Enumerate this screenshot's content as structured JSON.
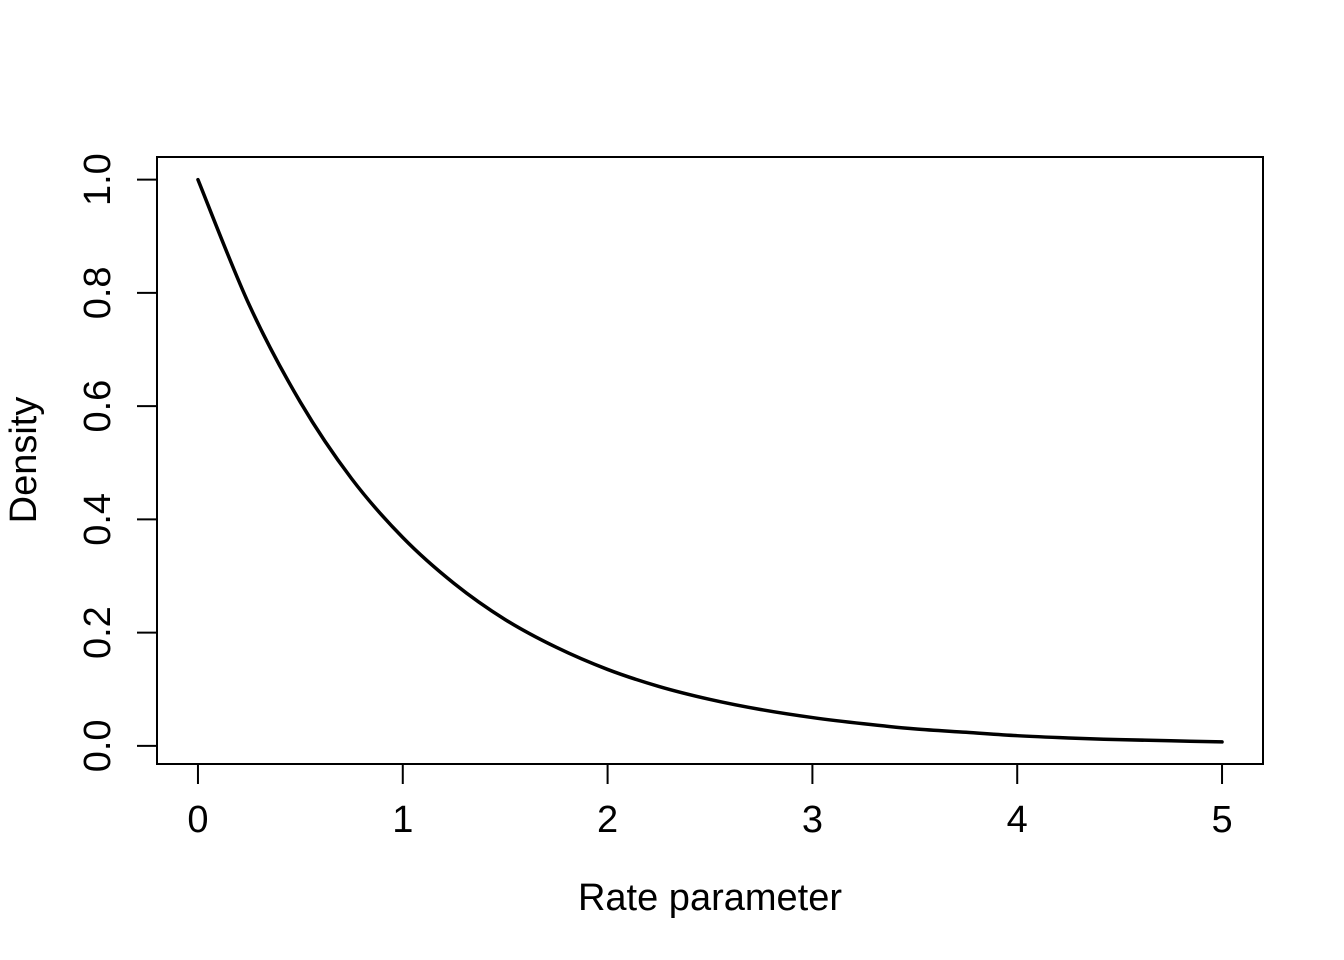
{
  "chart_data": {
    "type": "line",
    "xlabel": "Rate parameter",
    "ylabel": "Density",
    "xlim": [
      -0.2,
      5.2
    ],
    "ylim": [
      -0.032,
      1.04
    ],
    "xticks": [
      0,
      1,
      2,
      3,
      4,
      5
    ],
    "xtick_labels": [
      "0",
      "1",
      "2",
      "3",
      "4",
      "5"
    ],
    "yticks": [
      0.0,
      0.2,
      0.4,
      0.6,
      0.8,
      1.0
    ],
    "ytick_labels": [
      "0.0",
      "0.2",
      "0.4",
      "0.6",
      "0.8",
      "1.0"
    ],
    "grid": false,
    "series": [
      {
        "color": "#000000",
        "x": [
          0,
          0.25,
          0.5,
          0.75,
          1,
          1.25,
          1.5,
          1.75,
          2,
          2.25,
          2.5,
          2.75,
          3,
          3.25,
          3.5,
          3.75,
          4,
          4.25,
          4.5,
          4.75,
          5
        ],
        "y": [
          1.0,
          0.779,
          0.607,
          0.472,
          0.368,
          0.287,
          0.223,
          0.174,
          0.135,
          0.105,
          0.082,
          0.064,
          0.05,
          0.039,
          0.03,
          0.024,
          0.018,
          0.014,
          0.011,
          0.009,
          0.007
        ]
      }
    ]
  }
}
